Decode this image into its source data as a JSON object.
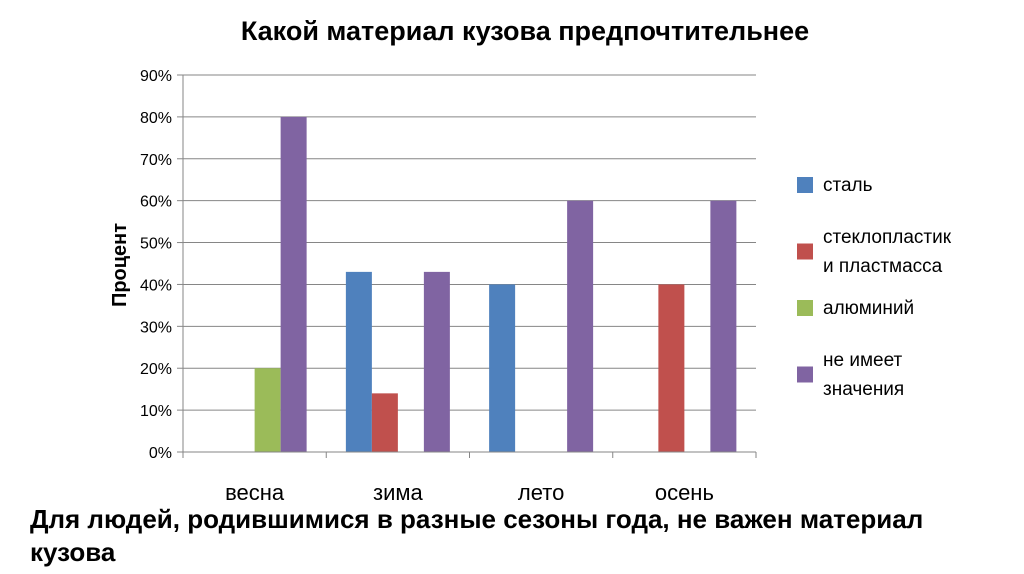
{
  "chart_data": {
    "type": "bar",
    "title": "Какой материал кузова предпочтительнее",
    "ylabel": "Процент",
    "xlabel": "",
    "categories": [
      "весна",
      "зима",
      "лето",
      "осень"
    ],
    "ylim": [
      0,
      90
    ],
    "y_ticks": [
      "0%",
      "10%",
      "20%",
      "30%",
      "40%",
      "50%",
      "60%",
      "70%",
      "80%",
      "90%"
    ],
    "y_unit": "%",
    "grid": true,
    "legend_position": "right",
    "series": [
      {
        "name": "сталь",
        "legend_lines": [
          "сталь"
        ],
        "color": "#4F81BD",
        "values": [
          0,
          43,
          40,
          0
        ]
      },
      {
        "name": "стеклопластик и пластмасса",
        "legend_lines": [
          "стеклопластик",
          "и пластмасса"
        ],
        "color": "#C0504D",
        "values": [
          0,
          14,
          0,
          40
        ]
      },
      {
        "name": "алюминий",
        "legend_lines": [
          "алюминий"
        ],
        "color": "#9BBB59",
        "values": [
          20,
          0,
          0,
          0
        ]
      },
      {
        "name": "не имеет значения",
        "legend_lines": [
          "не имеет",
          "значения"
        ],
        "color": "#8064A2",
        "values": [
          80,
          43,
          60,
          60
        ]
      }
    ]
  },
  "caption": "Для людей, родившимися в разные сезоны года, не важен материал кузова"
}
